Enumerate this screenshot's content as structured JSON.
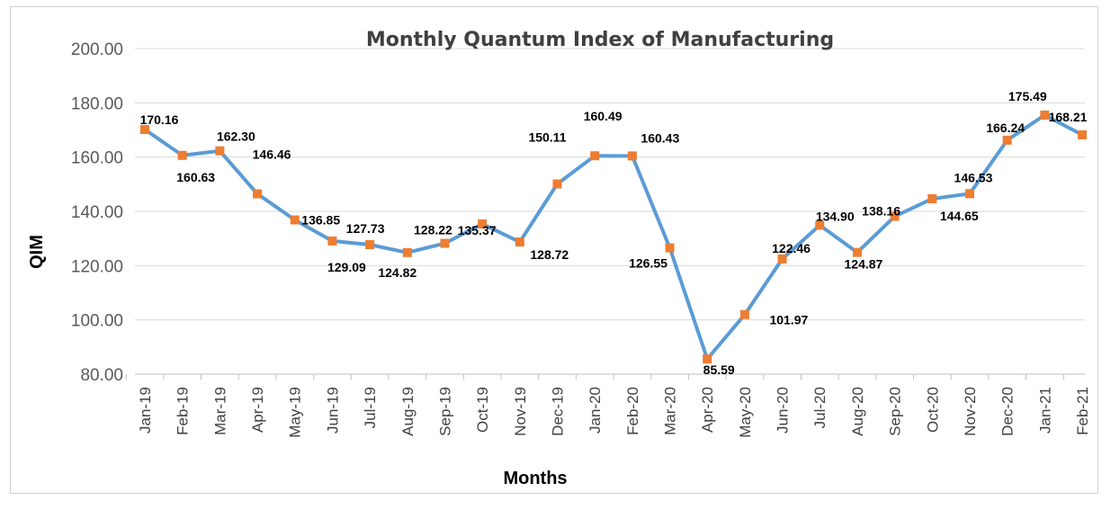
{
  "chart_data": {
    "type": "line",
    "title": "Monthly Quantum Index of Manufacturing",
    "xlabel": "Months",
    "ylabel": "QIM",
    "ylim": [
      80,
      200
    ],
    "yticks": [
      "80.00",
      "100.00",
      "120.00",
      "140.00",
      "160.00",
      "180.00",
      "200.00"
    ],
    "grid": "horizontal",
    "categories": [
      "Jan-19",
      "Feb-19",
      "Mar-19",
      "Apr-19",
      "May-19",
      "Jun-19",
      "Jul-19",
      "Aug-19",
      "Sep-19",
      "Oct-19",
      "Nov-19",
      "Dec-19",
      "Jan-20",
      "Feb-20",
      "Mar-20",
      "Apr-20",
      "May-20",
      "Jun-20",
      "Jul-20",
      "Aug-20",
      "Sep-20",
      "Oct-20",
      "Nov-20",
      "Dec-20",
      "Jan-21",
      "Feb-21"
    ],
    "values": [
      170.16,
      160.63,
      162.3,
      146.46,
      136.85,
      129.09,
      127.73,
      124.82,
      128.22,
      135.37,
      128.72,
      150.11,
      160.49,
      160.43,
      126.55,
      85.59,
      101.97,
      122.46,
      134.9,
      124.87,
      138.16,
      144.65,
      146.53,
      166.24,
      175.49,
      168.21
    ],
    "data_labels": [
      "170.16",
      "160.63",
      "162.30",
      "146.46",
      "136.85",
      "129.09",
      "127.73",
      "124.82",
      "128.22",
      "135.37",
      "128.72",
      "150.11",
      "160.49",
      "160.43",
      "126.55",
      "85.59",
      "101.97",
      "122.46",
      "134.90",
      "124.87",
      "138.16",
      "144.65",
      "146.53",
      "166.24",
      "175.49",
      "168.21"
    ],
    "line_color": "#5b9bd5",
    "marker_color": "#ed7d31",
    "marker": "square"
  }
}
